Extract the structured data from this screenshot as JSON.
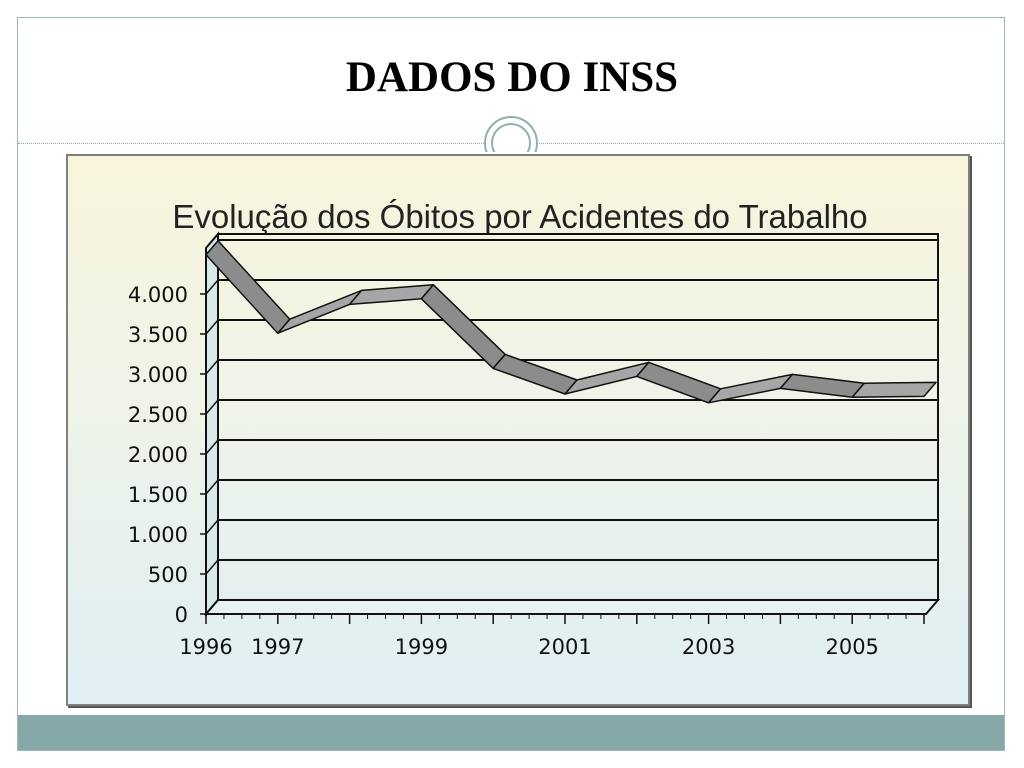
{
  "slide": {
    "title": "DADOS DO INSS"
  },
  "colors": {
    "frame": "#9fb7b7",
    "footer": "#86a8a8",
    "ribbon": "#8c8c8c"
  },
  "chart_data": {
    "type": "line",
    "title": "Evolução dos Óbitos por Acidentes do Trabalho",
    "xlabel": "",
    "ylabel": "",
    "x": [
      1996,
      1997,
      1998,
      1999,
      2000,
      2001,
      2002,
      2003,
      2004,
      2005,
      2006
    ],
    "x_tick_labels": [
      "1996",
      "1997",
      "",
      "1999",
      "",
      "2001",
      "",
      "2003",
      "",
      "2005",
      ""
    ],
    "series": [
      {
        "values": [
          4490,
          3510,
          3870,
          3940,
          3070,
          2750,
          2970,
          2640,
          2820,
          2710,
          2720
        ]
      }
    ],
    "ylim": [
      0,
      4500
    ],
    "y_ticks": [
      0,
      500,
      1000,
      1500,
      2000,
      2500,
      3000,
      3500,
      4000
    ],
    "y_tick_labels": [
      "0",
      "500",
      "1.000",
      "1.500",
      "2.000",
      "2.500",
      "3.000",
      "3.500",
      "4.000"
    ],
    "grid": true,
    "style": "3d-ribbon"
  }
}
